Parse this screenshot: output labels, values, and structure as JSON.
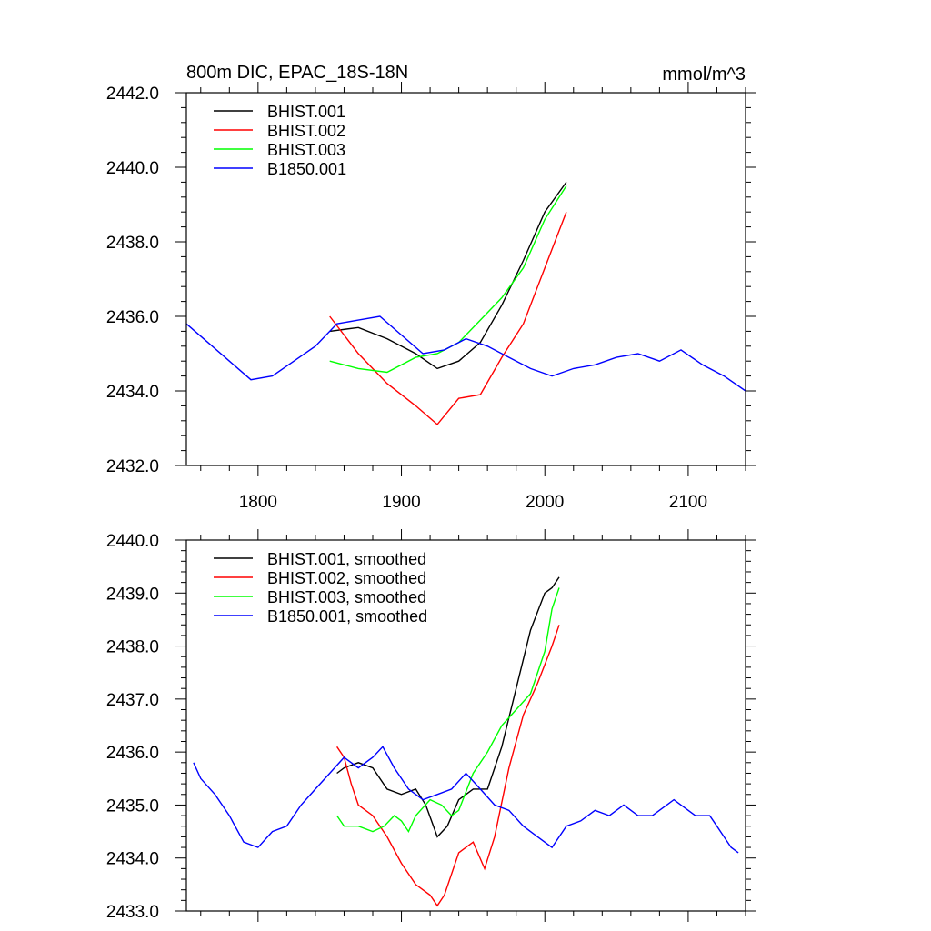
{
  "chart_data": [
    {
      "type": "line",
      "title_left": "800m DIC, EPAC_18S-18N",
      "title_right": "mmol/m^3",
      "xlim": [
        1750,
        2140
      ],
      "ylim": [
        2432.0,
        2442.0
      ],
      "x_ticks": [
        1800,
        1900,
        2000,
        2100
      ],
      "x_tick_labels": [
        "1800",
        "1900",
        "2000",
        "2100"
      ],
      "y_ticks": [
        2432.0,
        2434.0,
        2436.0,
        2438.0,
        2440.0,
        2442.0
      ],
      "y_tick_labels": [
        "2432.0",
        "2434.0",
        "2436.0",
        "2438.0",
        "2440.0",
        "2442.0"
      ],
      "legend_position": "top-left",
      "series": [
        {
          "name": "BHIST.001",
          "color": "#000000",
          "x": [
            1850,
            1870,
            1890,
            1910,
            1925,
            1940,
            1955,
            1970,
            1985,
            2000,
            2015
          ],
          "y": [
            2435.6,
            2435.7,
            2435.4,
            2435.0,
            2434.6,
            2434.8,
            2435.3,
            2436.3,
            2437.5,
            2438.8,
            2439.6
          ]
        },
        {
          "name": "BHIST.002",
          "color": "#ff0000",
          "x": [
            1850,
            1870,
            1890,
            1910,
            1925,
            1940,
            1955,
            1970,
            1985,
            2000,
            2015
          ],
          "y": [
            2436.0,
            2435.0,
            2434.2,
            2433.6,
            2433.1,
            2433.8,
            2433.9,
            2434.9,
            2435.8,
            2437.3,
            2438.8
          ]
        },
        {
          "name": "BHIST.003",
          "color": "#00ff00",
          "x": [
            1850,
            1870,
            1890,
            1910,
            1925,
            1940,
            1955,
            1970,
            1985,
            2000,
            2015
          ],
          "y": [
            2434.8,
            2434.6,
            2434.5,
            2434.9,
            2435.0,
            2435.3,
            2435.9,
            2436.5,
            2437.3,
            2438.6,
            2439.5
          ]
        },
        {
          "name": "B1850.001",
          "color": "#0000ff",
          "x": [
            1750,
            1765,
            1780,
            1795,
            1810,
            1825,
            1840,
            1855,
            1870,
            1885,
            1900,
            1915,
            1930,
            1945,
            1960,
            1975,
            1990,
            2005,
            2020,
            2035,
            2050,
            2065,
            2080,
            2095,
            2110,
            2125,
            2140
          ],
          "y": [
            2435.8,
            2435.3,
            2434.8,
            2434.3,
            2434.4,
            2434.8,
            2435.2,
            2435.8,
            2435.9,
            2436.0,
            2435.5,
            2435.0,
            2435.1,
            2435.4,
            2435.2,
            2434.9,
            2434.6,
            2434.4,
            2434.6,
            2434.7,
            2434.9,
            2435.0,
            2434.8,
            2435.1,
            2434.7,
            2434.4,
            2434.0
          ]
        }
      ]
    },
    {
      "type": "line",
      "xlim": [
        1750,
        2140
      ],
      "ylim": [
        2433.0,
        2440.0
      ],
      "x_ticks": [
        1800,
        1900,
        2000,
        2100
      ],
      "y_ticks": [
        2433.0,
        2434.0,
        2435.0,
        2436.0,
        2437.0,
        2438.0,
        2439.0,
        2440.0
      ],
      "y_tick_labels": [
        "2433.0",
        "2434.0",
        "2435.0",
        "2436.0",
        "2437.0",
        "2438.0",
        "2439.0",
        "2440.0"
      ],
      "legend_position": "top-left",
      "series": [
        {
          "name": "BHIST.001, smoothed",
          "color": "#000000",
          "x": [
            1855,
            1860,
            1870,
            1880,
            1890,
            1900,
            1910,
            1917,
            1925,
            1932,
            1940,
            1950,
            1960,
            1970,
            1980,
            1990,
            2000,
            2005,
            2010
          ],
          "y": [
            2435.6,
            2435.7,
            2435.8,
            2435.7,
            2435.3,
            2435.2,
            2435.3,
            2435.0,
            2434.4,
            2434.6,
            2435.1,
            2435.3,
            2435.3,
            2436.1,
            2437.2,
            2438.3,
            2439.0,
            2439.1,
            2439.3
          ]
        },
        {
          "name": "BHIST.002, smoothed",
          "color": "#ff0000",
          "x": [
            1855,
            1860,
            1865,
            1870,
            1880,
            1890,
            1900,
            1910,
            1920,
            1925,
            1930,
            1940,
            1950,
            1958,
            1965,
            1975,
            1985,
            1995,
            2005,
            2010
          ],
          "y": [
            2436.1,
            2435.9,
            2435.4,
            2435.0,
            2434.8,
            2434.4,
            2433.9,
            2433.5,
            2433.3,
            2433.1,
            2433.3,
            2434.1,
            2434.3,
            2433.8,
            2434.4,
            2435.7,
            2436.7,
            2437.3,
            2438.0,
            2438.4
          ]
        },
        {
          "name": "BHIST.003, smoothed",
          "color": "#00ff00",
          "x": [
            1855,
            1860,
            1870,
            1880,
            1888,
            1895,
            1900,
            1905,
            1910,
            1920,
            1928,
            1935,
            1940,
            1950,
            1960,
            1970,
            1980,
            1990,
            2000,
            2005,
            2010
          ],
          "y": [
            2434.8,
            2434.6,
            2434.6,
            2434.5,
            2434.6,
            2434.8,
            2434.7,
            2434.5,
            2434.8,
            2435.1,
            2435.0,
            2434.8,
            2434.9,
            2435.6,
            2436.0,
            2436.5,
            2436.8,
            2437.1,
            2437.9,
            2438.7,
            2439.1
          ]
        },
        {
          "name": "B1850.001, smoothed",
          "color": "#0000ff",
          "x": [
            1755,
            1760,
            1770,
            1780,
            1790,
            1800,
            1810,
            1820,
            1830,
            1840,
            1850,
            1860,
            1870,
            1880,
            1887,
            1895,
            1905,
            1915,
            1925,
            1935,
            1945,
            1955,
            1965,
            1975,
            1985,
            1995,
            2005,
            2015,
            2025,
            2035,
            2045,
            2055,
            2065,
            2075,
            2085,
            2090,
            2095,
            2105,
            2115,
            2120,
            2125,
            2130,
            2135
          ],
          "y": [
            2435.8,
            2435.5,
            2435.2,
            2434.8,
            2434.3,
            2434.2,
            2434.5,
            2434.6,
            2435.0,
            2435.3,
            2435.6,
            2435.9,
            2435.7,
            2435.9,
            2436.1,
            2435.7,
            2435.3,
            2435.1,
            2435.2,
            2435.3,
            2435.6,
            2435.3,
            2435.0,
            2434.9,
            2434.6,
            2434.4,
            2434.2,
            2434.6,
            2434.7,
            2434.9,
            2434.8,
            2435.0,
            2434.8,
            2434.8,
            2435.0,
            2435.1,
            2435.0,
            2434.8,
            2434.8,
            2434.6,
            2434.4,
            2434.2,
            2434.1
          ]
        }
      ]
    }
  ]
}
